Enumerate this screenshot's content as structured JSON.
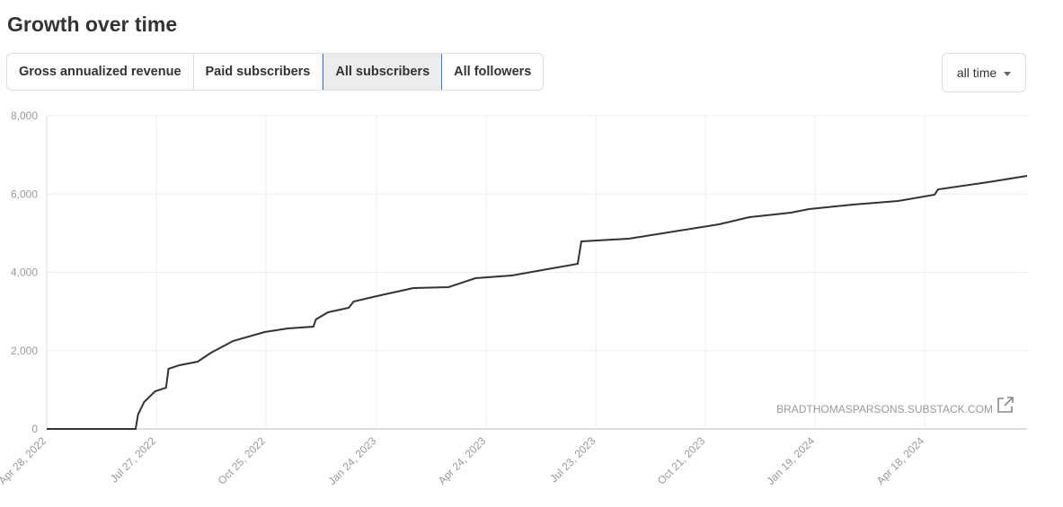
{
  "header": {
    "title": "Growth over time"
  },
  "tabs": [
    "Gross annualized revenue",
    "Paid subscribers",
    "All subscribers",
    "All followers"
  ],
  "range_select": "all time",
  "chart_data": {
    "type": "line",
    "watermark": "BRADTHOMASPARSONS.SUBSTACK.COM",
    "color": "#333333",
    "grid": true,
    "x": [
      "2022-04-28",
      "2022-07-10",
      "2022-07-12",
      "2022-07-17",
      "2022-07-26",
      "2022-08-04",
      "2022-08-06",
      "2022-08-15",
      "2022-08-30",
      "2022-09-10",
      "2022-09-28",
      "2022-10-24",
      "2022-11-12",
      "2022-12-03",
      "2022-12-05",
      "2022-12-15",
      "2023-01-01",
      "2023-01-05",
      "2023-01-24",
      "2023-02-23",
      "2023-03-24",
      "2023-04-15",
      "2023-05-15",
      "2023-06-13",
      "2023-07-08",
      "2023-07-11",
      "2023-08-19",
      "2023-09-25",
      "2023-11-01",
      "2023-11-26",
      "2023-12-30",
      "2024-01-14",
      "2024-02-19",
      "2024-03-27",
      "2024-04-26",
      "2024-04-29",
      "2024-06-09",
      "2024-07-11"
    ],
    "values": [
      0,
      0,
      367,
      688,
      963,
      1054,
      1536,
      1628,
      1719,
      1948,
      2246,
      2476,
      2567,
      2613,
      2797,
      2980,
      3095,
      3255,
      3392,
      3599,
      3622,
      3851,
      3920,
      4080,
      4218,
      4791,
      4860,
      5043,
      5226,
      5410,
      5524,
      5616,
      5731,
      5822,
      5983,
      6120,
      6304,
      6464
    ],
    "xlim": [
      "2022-04-28",
      "2024-07-11"
    ],
    "xticks": [
      {
        "value": "2022-04-28",
        "label": "Apr 28, 2022"
      },
      {
        "value": "2022-07-27",
        "label": "Jul 27, 2022"
      },
      {
        "value": "2022-10-25",
        "label": "Oct 25, 2022"
      },
      {
        "value": "2023-01-24",
        "label": "Jan 24, 2023"
      },
      {
        "value": "2023-04-24",
        "label": "Apr 24, 2023"
      },
      {
        "value": "2023-07-23",
        "label": "Jul 23, 2023"
      },
      {
        "value": "2023-10-21",
        "label": "Oct 21, 2023"
      },
      {
        "value": "2024-01-19",
        "label": "Jan 19, 2024"
      },
      {
        "value": "2024-04-18",
        "label": "Apr 18, 2024"
      }
    ],
    "ylim": [
      0,
      8000
    ],
    "yticks": [
      0,
      {
        "value": 2000,
        "label": "2,000"
      },
      {
        "value": 4000,
        "label": "4,000"
      },
      {
        "value": 6000,
        "label": "6,000"
      },
      {
        "value": 8000,
        "label": "8,000"
      }
    ]
  }
}
